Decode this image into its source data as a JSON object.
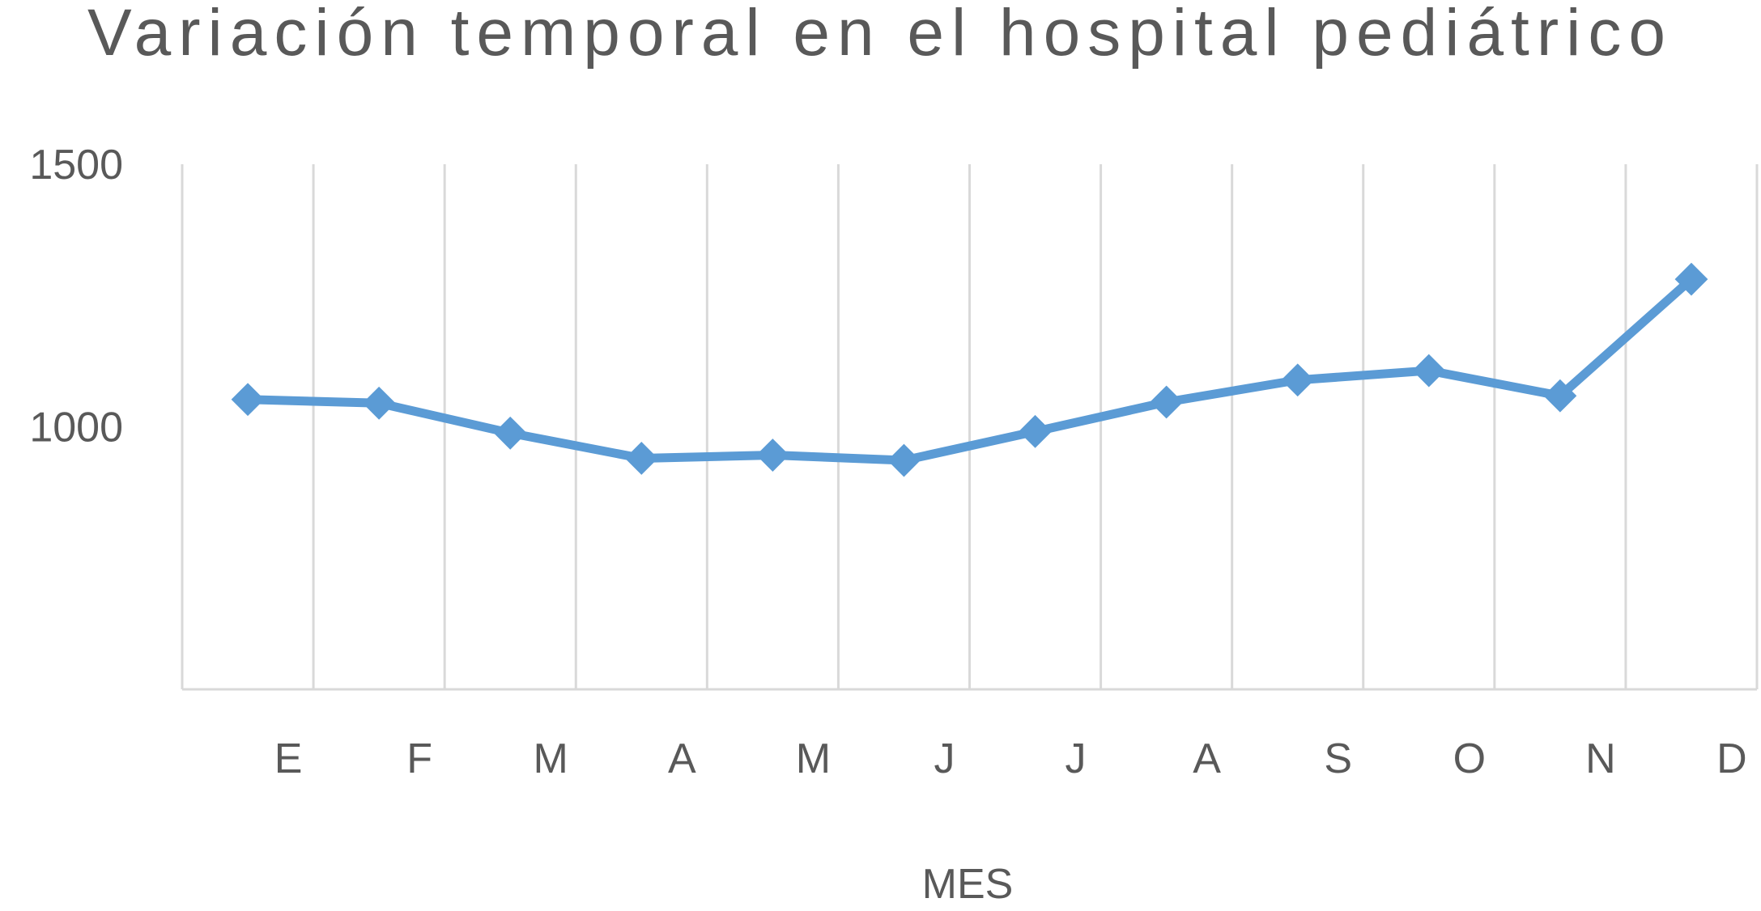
{
  "chart_data": {
    "type": "line",
    "title": "Variación temporal en el hospital pediátrico",
    "xlabel": "MES",
    "ylabel": "",
    "categories": [
      "E",
      "F",
      "M",
      "A",
      "M",
      "J",
      "J",
      "A",
      "S",
      "O",
      "N",
      "D"
    ],
    "series": [
      {
        "values": [
          1052,
          1045,
          988,
          940,
          946,
          936,
          991,
          1047,
          1089,
          1107,
          1059,
          1281
        ],
        "color": "#5B9BD5",
        "marker": "diamond"
      }
    ],
    "ylim": [
      500,
      1500
    ],
    "yticks": [
      "1000",
      "1500"
    ],
    "grid": "vertical",
    "legend": "none"
  }
}
